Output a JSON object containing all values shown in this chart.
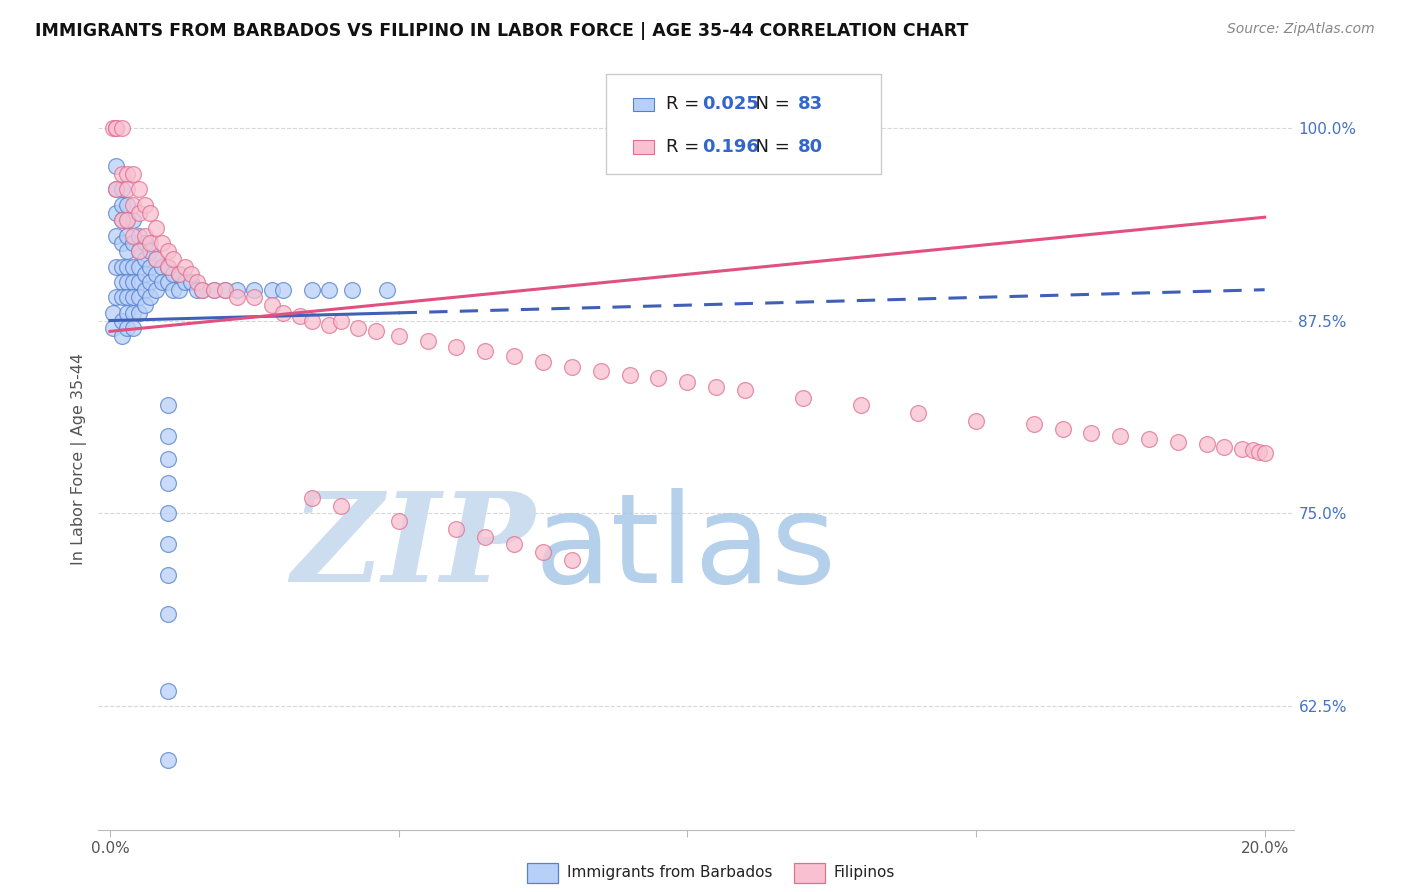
{
  "title": "IMMIGRANTS FROM BARBADOS VS FILIPINO IN LABOR FORCE | AGE 35-44 CORRELATION CHART",
  "source": "Source: ZipAtlas.com",
  "ylabel": "In Labor Force | Age 35-44",
  "legend_label_blue": "Immigrants from Barbados",
  "legend_label_pink": "Filipinos",
  "R_blue": 0.025,
  "N_blue": 83,
  "R_pink": 0.196,
  "N_pink": 80,
  "xlim": [
    -0.002,
    0.205
  ],
  "ylim": [
    0.545,
    1.025
  ],
  "yticks_right": [
    0.625,
    0.75,
    0.875,
    1.0
  ],
  "ytick_right_labels": [
    "62.5%",
    "75.0%",
    "87.5%",
    "100.0%"
  ],
  "color_blue_fill": "#b8d0f8",
  "color_blue_edge": "#5580cc",
  "color_blue_line": "#4060b8",
  "color_pink_fill": "#f8c0d0",
  "color_pink_edge": "#e07090",
  "color_pink_line": "#e05080",
  "bg_color": "#ffffff",
  "blue_x": [
    0.0005,
    0.0005,
    0.001,
    0.001,
    0.001,
    0.001,
    0.001,
    0.001,
    0.002,
    0.002,
    0.002,
    0.002,
    0.002,
    0.002,
    0.002,
    0.002,
    0.002,
    0.003,
    0.003,
    0.003,
    0.003,
    0.003,
    0.003,
    0.003,
    0.003,
    0.003,
    0.004,
    0.004,
    0.004,
    0.004,
    0.004,
    0.004,
    0.004,
    0.005,
    0.005,
    0.005,
    0.005,
    0.005,
    0.005,
    0.006,
    0.006,
    0.006,
    0.006,
    0.006,
    0.007,
    0.007,
    0.007,
    0.007,
    0.008,
    0.008,
    0.008,
    0.009,
    0.009,
    0.01,
    0.01,
    0.011,
    0.011,
    0.012,
    0.012,
    0.013,
    0.014,
    0.015,
    0.016,
    0.018,
    0.02,
    0.022,
    0.025,
    0.028,
    0.03,
    0.035,
    0.038,
    0.042,
    0.048,
    0.01,
    0.01,
    0.01,
    0.01,
    0.01,
    0.01,
    0.01,
    0.01,
    0.01,
    0.01
  ],
  "blue_y": [
    0.88,
    0.87,
    0.975,
    0.96,
    0.945,
    0.93,
    0.91,
    0.89,
    0.96,
    0.95,
    0.94,
    0.925,
    0.91,
    0.9,
    0.89,
    0.875,
    0.865,
    0.95,
    0.94,
    0.93,
    0.92,
    0.91,
    0.9,
    0.89,
    0.88,
    0.87,
    0.94,
    0.925,
    0.91,
    0.9,
    0.89,
    0.88,
    0.87,
    0.93,
    0.92,
    0.91,
    0.9,
    0.89,
    0.88,
    0.925,
    0.915,
    0.905,
    0.895,
    0.885,
    0.92,
    0.91,
    0.9,
    0.89,
    0.915,
    0.905,
    0.895,
    0.91,
    0.9,
    0.91,
    0.9,
    0.905,
    0.895,
    0.905,
    0.895,
    0.9,
    0.9,
    0.895,
    0.895,
    0.895,
    0.895,
    0.895,
    0.895,
    0.895,
    0.895,
    0.895,
    0.895,
    0.895,
    0.895,
    0.82,
    0.8,
    0.785,
    0.77,
    0.75,
    0.73,
    0.71,
    0.685,
    0.635,
    0.59
  ],
  "pink_x": [
    0.0005,
    0.001,
    0.001,
    0.001,
    0.002,
    0.002,
    0.002,
    0.003,
    0.003,
    0.003,
    0.004,
    0.004,
    0.004,
    0.005,
    0.005,
    0.005,
    0.006,
    0.006,
    0.007,
    0.007,
    0.008,
    0.008,
    0.009,
    0.01,
    0.01,
    0.011,
    0.012,
    0.013,
    0.014,
    0.015,
    0.016,
    0.018,
    0.02,
    0.022,
    0.025,
    0.028,
    0.03,
    0.033,
    0.035,
    0.038,
    0.04,
    0.043,
    0.046,
    0.05,
    0.055,
    0.06,
    0.065,
    0.07,
    0.075,
    0.08,
    0.085,
    0.09,
    0.095,
    0.1,
    0.105,
    0.11,
    0.12,
    0.13,
    0.14,
    0.15,
    0.16,
    0.165,
    0.17,
    0.175,
    0.18,
    0.185,
    0.19,
    0.193,
    0.196,
    0.198,
    0.199,
    0.2,
    0.035,
    0.04,
    0.05,
    0.06,
    0.065,
    0.07,
    0.075,
    0.08
  ],
  "pink_y": [
    1.0,
    1.0,
    1.0,
    0.96,
    1.0,
    0.97,
    0.94,
    0.97,
    0.96,
    0.94,
    0.97,
    0.95,
    0.93,
    0.96,
    0.945,
    0.92,
    0.95,
    0.93,
    0.945,
    0.925,
    0.935,
    0.915,
    0.925,
    0.92,
    0.91,
    0.915,
    0.905,
    0.91,
    0.905,
    0.9,
    0.895,
    0.895,
    0.895,
    0.89,
    0.89,
    0.885,
    0.88,
    0.878,
    0.875,
    0.872,
    0.875,
    0.87,
    0.868,
    0.865,
    0.862,
    0.858,
    0.855,
    0.852,
    0.848,
    0.845,
    0.842,
    0.84,
    0.838,
    0.835,
    0.832,
    0.83,
    0.825,
    0.82,
    0.815,
    0.81,
    0.808,
    0.805,
    0.802,
    0.8,
    0.798,
    0.796,
    0.795,
    0.793,
    0.792,
    0.791,
    0.79,
    0.789,
    0.76,
    0.755,
    0.745,
    0.74,
    0.735,
    0.73,
    0.725,
    0.72
  ]
}
